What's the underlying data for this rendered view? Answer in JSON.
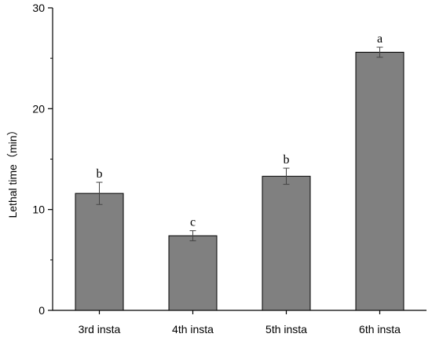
{
  "chart_data": {
    "type": "bar",
    "categories": [
      "3rd insta",
      "4th insta",
      "5th insta",
      "6th insta"
    ],
    "values": [
      11.6,
      7.4,
      13.3,
      25.6
    ],
    "errors": [
      1.1,
      0.5,
      0.8,
      0.5
    ],
    "significance_labels": [
      "b",
      "c",
      "b",
      "a"
    ],
    "xlabel": "",
    "ylabel": "Lethal time（min）",
    "ylim": [
      0,
      30
    ],
    "yticks": [
      0,
      10,
      20,
      30
    ],
    "grid": false,
    "bar_color": "#808080",
    "bar_edge_color": "#000000"
  }
}
